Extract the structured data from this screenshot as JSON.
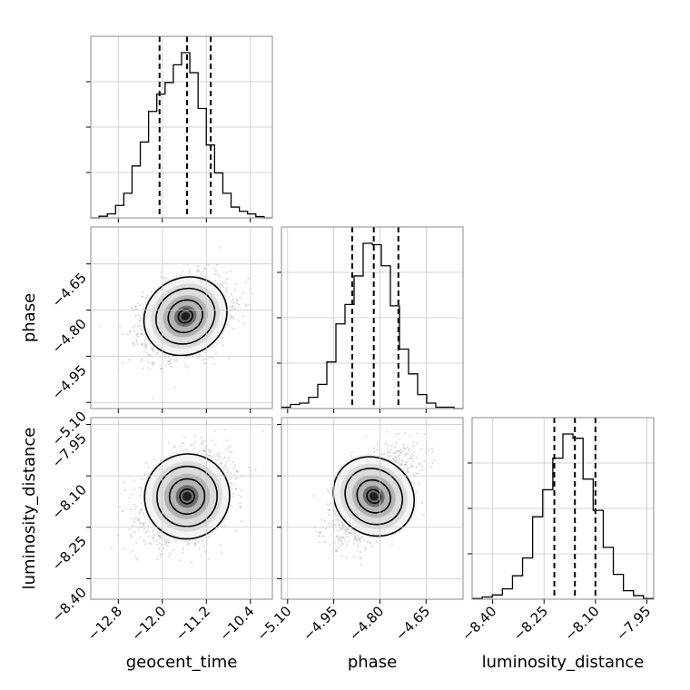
{
  "chart_data": {
    "type": "corner",
    "parameters": [
      "geocent_time",
      "phase",
      "luminosity_distance"
    ],
    "axis_labels": {
      "x": [
        "geocent_time",
        "phase",
        "luminosity_distance"
      ],
      "y": [
        "phase",
        "luminosity_distance"
      ]
    },
    "ticks": {
      "geocent_time": {
        "values": [
          -12.8,
          -12.0,
          -11.2,
          -10.4
        ],
        "labels": [
          "−12.8",
          "−12.0",
          "−11.2",
          "−10.4"
        ],
        "range": [
          -13.3,
          -10.0
        ]
      },
      "phase": {
        "values": [
          -5.1,
          -4.95,
          -4.8,
          -4.65
        ],
        "labels": [
          "−5.10",
          "−4.95",
          "−4.80",
          "−4.65"
        ],
        "range": [
          -5.12,
          -4.53
        ]
      },
      "luminosity_distance": {
        "values": [
          -8.4,
          -8.25,
          -8.1,
          -7.95
        ],
        "labels": [
          "−8.40",
          "−8.25",
          "−8.10",
          "−7.95"
        ],
        "range": [
          -8.46,
          -7.93
        ]
      }
    },
    "quantiles": {
      "geocent_time": [
        -12.05,
        -11.55,
        -11.12
      ],
      "phase": [
        -4.89,
        -4.82,
        -4.74
      ],
      "luminosity_distance": [
        -8.22,
        -8.16,
        -8.1
      ]
    },
    "histograms": {
      "geocent_time": [
        0,
        0.5,
        1.2,
        3.8,
        7.5,
        15.8,
        23.1,
        32.4,
        37.7,
        41.2,
        46.6,
        50.3,
        44.2,
        33.3,
        22.2,
        13.7,
        7.5,
        3.3,
        2.0,
        1.2,
        0.4,
        0
      ],
      "phase": [
        0.4,
        1.2,
        1.6,
        3.3,
        7.1,
        13.7,
        24.9,
        30.6,
        39.0,
        48.6,
        48.2,
        42.0,
        30.2,
        17.5,
        10.2,
        4.1,
        1.6,
        0.4,
        0.4,
        0
      ],
      "luminosity_distance": [
        0.2,
        0.6,
        1.2,
        2.9,
        6.6,
        11.6,
        23.2,
        30.8,
        39.7,
        46.5,
        45.3,
        33.8,
        25.0,
        14.6,
        7.0,
        2.4,
        1.0,
        0.2
      ]
    },
    "scatter_2d": [
      {
        "x": "geocent_time",
        "y": "phase",
        "x_mean": -11.58,
        "y_mean": -4.82,
        "x_sd": 0.38,
        "y_sd": 0.06,
        "rho": 0.25
      },
      {
        "x": "geocent_time",
        "y": "luminosity_distance",
        "x_mean": -11.55,
        "y_mean": -8.16,
        "x_sd": 0.38,
        "y_sd": 0.06,
        "rho": 0.3
      },
      {
        "x": "phase",
        "y": "luminosity_distance",
        "x_mean": -4.82,
        "y_mean": -8.16,
        "x_sd": 0.06,
        "y_sd": 0.06,
        "rho": 0.55
      }
    ],
    "grid": true
  }
}
